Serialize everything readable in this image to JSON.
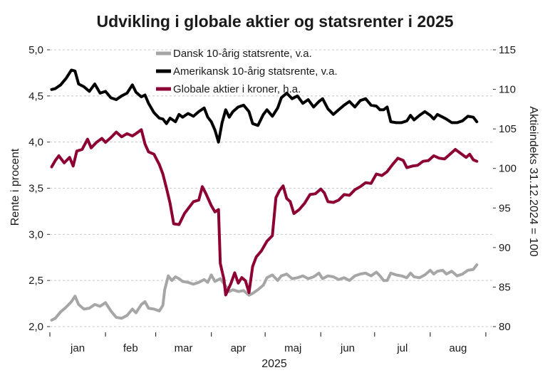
{
  "chart_data": {
    "type": "line",
    "title": "Udvikling i globale aktier og statsrenter i 2025",
    "xlabel": "2025",
    "ylabel_left": "Rente i procent",
    "ylabel_right": "Aktieindeks 31.12.2024 = 100",
    "x_month_labels": [
      "jan",
      "feb",
      "mar",
      "apr",
      "maj",
      "jun",
      "jul",
      "aug"
    ],
    "ylim_left": [
      2.0,
      5.0
    ],
    "ylim_right": [
      80,
      115
    ],
    "yticks_left": [
      "2,0",
      "2,5",
      "3,0",
      "3,5",
      "4,0",
      "4,5",
      "5,0"
    ],
    "yticks_right": [
      "80",
      "85",
      "90",
      "95",
      "100",
      "105",
      "110",
      "115"
    ],
    "grid": "horizontal dashed",
    "legend_position": "top-center",
    "x_unit": "day of 2025",
    "series": [
      {
        "name": "Dansk 10-årig statsrente, v.a.",
        "axis": "left",
        "color": "#a6a6a6",
        "points": [
          [
            1,
            2.07
          ],
          [
            3,
            2.09
          ],
          [
            6,
            2.16
          ],
          [
            9,
            2.21
          ],
          [
            12,
            2.27
          ],
          [
            14,
            2.33
          ],
          [
            16,
            2.24
          ],
          [
            19,
            2.19
          ],
          [
            22,
            2.2
          ],
          [
            25,
            2.24
          ],
          [
            28,
            2.22
          ],
          [
            31,
            2.26
          ],
          [
            34,
            2.17
          ],
          [
            37,
            2.1
          ],
          [
            40,
            2.09
          ],
          [
            43,
            2.12
          ],
          [
            46,
            2.19
          ],
          [
            48,
            2.15
          ],
          [
            51,
            2.24
          ],
          [
            53,
            2.27
          ],
          [
            55,
            2.2
          ],
          [
            58,
            2.19
          ],
          [
            61,
            2.17
          ],
          [
            63,
            2.23
          ],
          [
            64,
            2.4
          ],
          [
            66,
            2.55
          ],
          [
            68,
            2.5
          ],
          [
            70,
            2.54
          ],
          [
            72,
            2.52
          ],
          [
            74,
            2.49
          ],
          [
            77,
            2.48
          ],
          [
            80,
            2.46
          ],
          [
            83,
            2.48
          ],
          [
            86,
            2.51
          ],
          [
            88,
            2.48
          ],
          [
            90,
            2.56
          ],
          [
            92,
            2.49
          ],
          [
            95,
            2.52
          ],
          [
            98,
            2.44
          ],
          [
            100,
            2.38
          ],
          [
            102,
            2.4
          ],
          [
            105,
            2.38
          ],
          [
            108,
            2.39
          ],
          [
            111,
            2.34
          ],
          [
            113,
            2.36
          ],
          [
            116,
            2.4
          ],
          [
            119,
            2.45
          ],
          [
            121,
            2.53
          ],
          [
            124,
            2.56
          ],
          [
            127,
            2.5
          ],
          [
            129,
            2.55
          ],
          [
            132,
            2.57
          ],
          [
            135,
            2.52
          ],
          [
            138,
            2.53
          ],
          [
            141,
            2.55
          ],
          [
            144,
            2.52
          ],
          [
            147,
            2.54
          ],
          [
            150,
            2.58
          ],
          [
            152,
            2.52
          ],
          [
            155,
            2.55
          ],
          [
            158,
            2.54
          ],
          [
            161,
            2.51
          ],
          [
            164,
            2.53
          ],
          [
            167,
            2.5
          ],
          [
            170,
            2.55
          ],
          [
            173,
            2.57
          ],
          [
            176,
            2.58
          ],
          [
            179,
            2.55
          ],
          [
            182,
            2.59
          ],
          [
            184,
            2.55
          ],
          [
            186,
            2.5
          ],
          [
            188,
            2.5
          ],
          [
            190,
            2.58
          ],
          [
            193,
            2.56
          ],
          [
            196,
            2.55
          ],
          [
            199,
            2.53
          ],
          [
            201,
            2.58
          ],
          [
            203,
            2.54
          ],
          [
            206,
            2.53
          ],
          [
            209,
            2.56
          ],
          [
            212,
            2.61
          ],
          [
            214,
            2.57
          ],
          [
            216,
            2.6
          ],
          [
            219,
            2.61
          ],
          [
            221,
            2.57
          ],
          [
            224,
            2.6
          ],
          [
            227,
            2.55
          ],
          [
            230,
            2.57
          ],
          [
            233,
            2.61
          ],
          [
            236,
            2.62
          ],
          [
            238,
            2.67
          ]
        ]
      },
      {
        "name": "Amerikansk 10-årig statsrente, v.a.",
        "axis": "left",
        "color": "#000000",
        "points": [
          [
            1,
            4.57
          ],
          [
            3,
            4.58
          ],
          [
            6,
            4.62
          ],
          [
            9,
            4.69
          ],
          [
            12,
            4.78
          ],
          [
            14,
            4.77
          ],
          [
            16,
            4.63
          ],
          [
            19,
            4.6
          ],
          [
            22,
            4.55
          ],
          [
            25,
            4.63
          ],
          [
            28,
            4.53
          ],
          [
            31,
            4.55
          ],
          [
            34,
            4.48
          ],
          [
            37,
            4.46
          ],
          [
            40,
            4.5
          ],
          [
            43,
            4.53
          ],
          [
            46,
            4.62
          ],
          [
            48,
            4.54
          ],
          [
            51,
            4.49
          ],
          [
            53,
            4.51
          ],
          [
            55,
            4.42
          ],
          [
            58,
            4.32
          ],
          [
            61,
            4.26
          ],
          [
            63,
            4.25
          ],
          [
            65,
            4.2
          ],
          [
            67,
            4.26
          ],
          [
            70,
            4.22
          ],
          [
            72,
            4.3
          ],
          [
            74,
            4.27
          ],
          [
            77,
            4.31
          ],
          [
            80,
            4.28
          ],
          [
            83,
            4.33
          ],
          [
            86,
            4.37
          ],
          [
            88,
            4.27
          ],
          [
            90,
            4.22
          ],
          [
            92,
            4.13
          ],
          [
            94,
            4.0
          ],
          [
            96,
            4.21
          ],
          [
            98,
            4.35
          ],
          [
            100,
            4.27
          ],
          [
            102,
            4.33
          ],
          [
            105,
            4.38
          ],
          [
            108,
            4.4
          ],
          [
            111,
            4.33
          ],
          [
            113,
            4.2
          ],
          [
            116,
            4.18
          ],
          [
            119,
            4.3
          ],
          [
            121,
            4.35
          ],
          [
            124,
            4.28
          ],
          [
            127,
            4.37
          ],
          [
            129,
            4.48
          ],
          [
            132,
            4.53
          ],
          [
            135,
            4.47
          ],
          [
            138,
            4.5
          ],
          [
            141,
            4.42
          ],
          [
            144,
            4.46
          ],
          [
            147,
            4.38
          ],
          [
            150,
            4.44
          ],
          [
            152,
            4.47
          ],
          [
            155,
            4.36
          ],
          [
            158,
            4.3
          ],
          [
            161,
            4.35
          ],
          [
            164,
            4.4
          ],
          [
            167,
            4.44
          ],
          [
            170,
            4.38
          ],
          [
            173,
            4.45
          ],
          [
            176,
            4.47
          ],
          [
            179,
            4.4
          ],
          [
            182,
            4.39
          ],
          [
            184,
            4.35
          ],
          [
            186,
            4.35
          ],
          [
            188,
            4.38
          ],
          [
            190,
            4.22
          ],
          [
            193,
            4.21
          ],
          [
            196,
            4.21
          ],
          [
            199,
            4.23
          ],
          [
            201,
            4.29
          ],
          [
            203,
            4.24
          ],
          [
            206,
            4.29
          ],
          [
            209,
            4.33
          ],
          [
            212,
            4.29
          ],
          [
            214,
            4.25
          ],
          [
            216,
            4.3
          ],
          [
            219,
            4.27
          ],
          [
            221,
            4.25
          ],
          [
            224,
            4.21
          ],
          [
            227,
            4.21
          ],
          [
            230,
            4.23
          ],
          [
            233,
            4.28
          ],
          [
            236,
            4.27
          ],
          [
            238,
            4.22
          ]
        ]
      },
      {
        "name": "Globale aktier i kroner, h.a.",
        "axis": "right",
        "color": "#8c0033",
        "points": [
          [
            1,
            100.2
          ],
          [
            3,
            101.0
          ],
          [
            5,
            101.6
          ],
          [
            8,
            100.7
          ],
          [
            11,
            101.4
          ],
          [
            13,
            100.3
          ],
          [
            15,
            102.2
          ],
          [
            18,
            102.4
          ],
          [
            21,
            103.7
          ],
          [
            23,
            102.6
          ],
          [
            26,
            103.3
          ],
          [
            29,
            103.8
          ],
          [
            31,
            103.3
          ],
          [
            34,
            103.9
          ],
          [
            37,
            104.6
          ],
          [
            40,
            104.0
          ],
          [
            43,
            104.4
          ],
          [
            46,
            104.1
          ],
          [
            48,
            104.4
          ],
          [
            51,
            104.9
          ],
          [
            53,
            103.1
          ],
          [
            55,
            102.1
          ],
          [
            58,
            101.8
          ],
          [
            61,
            100.5
          ],
          [
            63,
            99.3
          ],
          [
            65,
            97.5
          ],
          [
            67,
            95.6
          ],
          [
            69,
            93.0
          ],
          [
            72,
            92.9
          ],
          [
            75,
            94.3
          ],
          [
            77,
            94.9
          ],
          [
            80,
            95.8
          ],
          [
            83,
            96.0
          ],
          [
            85,
            97.7
          ],
          [
            87,
            96.8
          ],
          [
            90,
            95.3
          ],
          [
            92,
            94.5
          ],
          [
            94,
            94.8
          ],
          [
            95,
            88.0
          ],
          [
            96,
            87.0
          ],
          [
            97,
            86.0
          ],
          [
            98,
            84.0
          ],
          [
            101,
            85.5
          ],
          [
            103,
            86.8
          ],
          [
            105,
            85.5
          ],
          [
            107,
            86.2
          ],
          [
            109,
            85.8
          ],
          [
            111,
            84.3
          ],
          [
            113,
            87.6
          ],
          [
            115,
            88.8
          ],
          [
            118,
            89.6
          ],
          [
            121,
            90.8
          ],
          [
            124,
            91.5
          ],
          [
            126,
            96.3
          ],
          [
            128,
            97.2
          ],
          [
            130,
            97.8
          ],
          [
            132,
            96.2
          ],
          [
            134,
            95.8
          ],
          [
            136,
            94.3
          ],
          [
            139,
            94.8
          ],
          [
            142,
            95.6
          ],
          [
            145,
            96.7
          ],
          [
            148,
            96.8
          ],
          [
            151,
            97.4
          ],
          [
            153,
            96.9
          ],
          [
            155,
            95.8
          ],
          [
            158,
            95.7
          ],
          [
            161,
            96.0
          ],
          [
            164,
            96.7
          ],
          [
            167,
            96.6
          ],
          [
            170,
            97.3
          ],
          [
            173,
            97.7
          ],
          [
            176,
            98.2
          ],
          [
            179,
            98.1
          ],
          [
            182,
            99.3
          ],
          [
            185,
            99.1
          ],
          [
            188,
            99.6
          ],
          [
            191,
            100.5
          ],
          [
            194,
            101.3
          ],
          [
            197,
            101.0
          ],
          [
            199,
            100.1
          ],
          [
            202,
            100.3
          ],
          [
            205,
            100.4
          ],
          [
            208,
            100.9
          ],
          [
            211,
            101.0
          ],
          [
            214,
            101.6
          ],
          [
            217,
            101.3
          ],
          [
            220,
            101.2
          ],
          [
            223,
            101.8
          ],
          [
            226,
            102.4
          ],
          [
            229,
            101.9
          ],
          [
            232,
            101.4
          ],
          [
            234,
            101.8
          ],
          [
            236,
            101.1
          ],
          [
            238,
            100.9
          ]
        ]
      }
    ]
  }
}
